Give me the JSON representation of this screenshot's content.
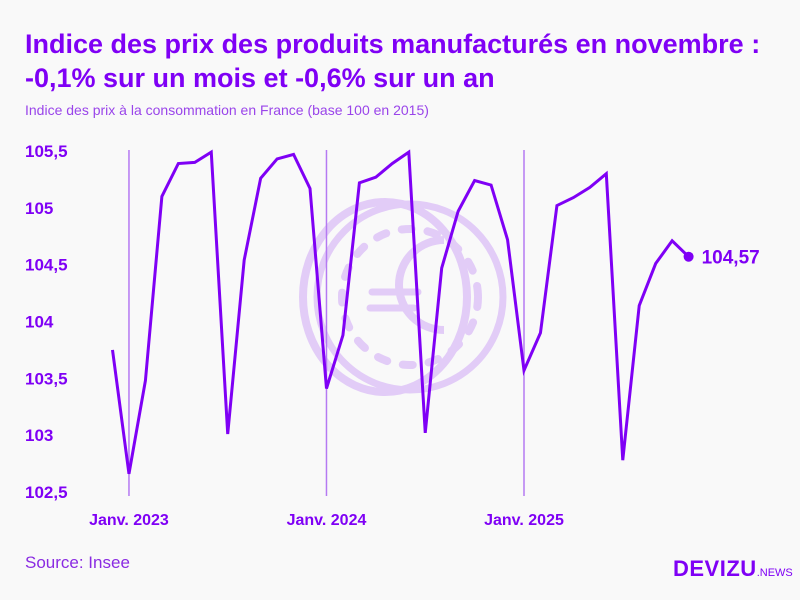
{
  "title": "Indice des prix des produits manufacturés en novembre : -0,1% sur un mois et -0,6% sur un an",
  "subtitle": "Indice des prix à la consommation en France (base 100 en 2015)",
  "source": "Source: Insee",
  "logo": {
    "main": "DEVIZU",
    "suffix": ".NEWS"
  },
  "colors": {
    "line": "#7f00f5",
    "watermark": "#e2ccf7",
    "text": "#7f00f5"
  },
  "watermark_icon": "euro-coin-icon",
  "chart_data": {
    "type": "line",
    "title": "Indice des prix des produits manufacturés en novembre : -0,1% sur un mois et -0,6% sur un an",
    "subtitle": "Indice des prix à la consommation en France (base 100 en 2015)",
    "xlabel": "",
    "ylabel": "",
    "ylim": [
      102.5,
      105.5
    ],
    "yticks": [
      "105,5",
      "105",
      "104,5",
      "104",
      "103,5",
      "103",
      "102,5"
    ],
    "ytick_values": [
      105.5,
      105,
      104.5,
      104,
      103.5,
      103,
      102.5
    ],
    "xticks": [
      {
        "label": "Janv. 2023",
        "date": "2023-01"
      },
      {
        "label": "Janv. 2024",
        "date": "2024-01"
      },
      {
        "label": "Janv. 2025",
        "date": "2025-01"
      }
    ],
    "grid": "vertical lines at January",
    "x": [
      "2022-12",
      "2023-01",
      "2023-02",
      "2023-03",
      "2023-04",
      "2023-05",
      "2023-06",
      "2023-07",
      "2023-08",
      "2023-09",
      "2023-10",
      "2023-11",
      "2023-12",
      "2024-01",
      "2024-02",
      "2024-03",
      "2024-04",
      "2024-05",
      "2024-06",
      "2024-07",
      "2024-08",
      "2024-09",
      "2024-10",
      "2024-11",
      "2024-12",
      "2025-01",
      "2025-02",
      "2025-03",
      "2025-04",
      "2025-05",
      "2025-06",
      "2025-07",
      "2025-08",
      "2025-09",
      "2025-10",
      "2025-11"
    ],
    "values": [
      103.75,
      102.66,
      103.48,
      105.1,
      105.39,
      105.4,
      105.49,
      103.01,
      104.54,
      105.26,
      105.43,
      105.47,
      105.17,
      103.41,
      103.88,
      105.22,
      105.27,
      105.39,
      105.49,
      103.02,
      104.47,
      104.97,
      105.24,
      105.2,
      104.72,
      103.57,
      103.9,
      105.02,
      105.09,
      105.18,
      105.3,
      102.78,
      104.14,
      104.51,
      104.71,
      104.57
    ],
    "last_label": "104,57"
  }
}
